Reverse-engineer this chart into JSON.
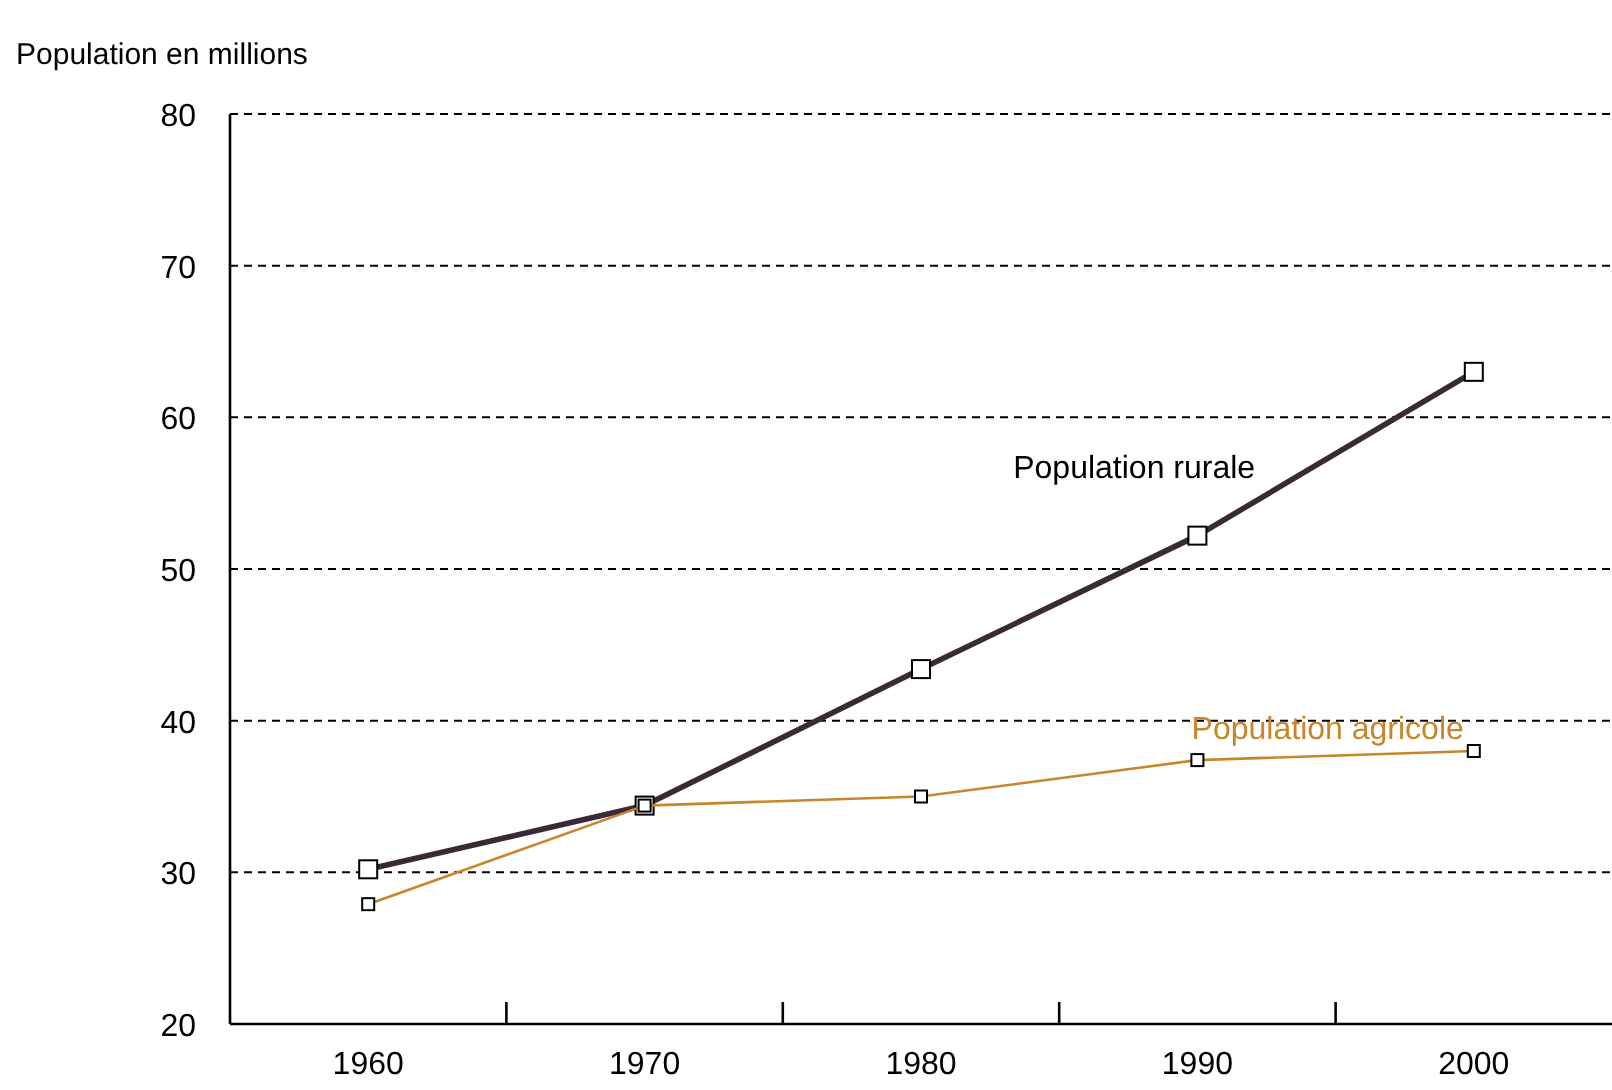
{
  "chart_data": {
    "type": "line",
    "ylabel": "Population en millions",
    "x": [
      1960,
      1970,
      1980,
      1990,
      2000
    ],
    "series": [
      {
        "name": "Population rurale",
        "color": "#3a2a35",
        "values": [
          30.2,
          34.4,
          43.4,
          52.2,
          63.0
        ]
      },
      {
        "name": "Population agricole",
        "color": "#c8862a",
        "values": [
          27.9,
          34.4,
          35.0,
          37.4,
          38.0
        ]
      }
    ],
    "xlim": [
      1955,
      2005
    ],
    "xticks": [
      1960,
      {
        "value": 1965,
        "label": null
      },
      1970,
      {
        "value": 1975,
        "label": null
      },
      1980,
      {
        "value": 1985,
        "label": null
      },
      1990,
      {
        "value": 1995,
        "label": null
      },
      2000
    ],
    "ylim": [
      20,
      80
    ],
    "yticks": [
      20,
      30,
      40,
      50,
      60,
      70,
      80
    ],
    "grid": "y",
    "marker": "square",
    "line_style": "solid",
    "legend": false
  }
}
